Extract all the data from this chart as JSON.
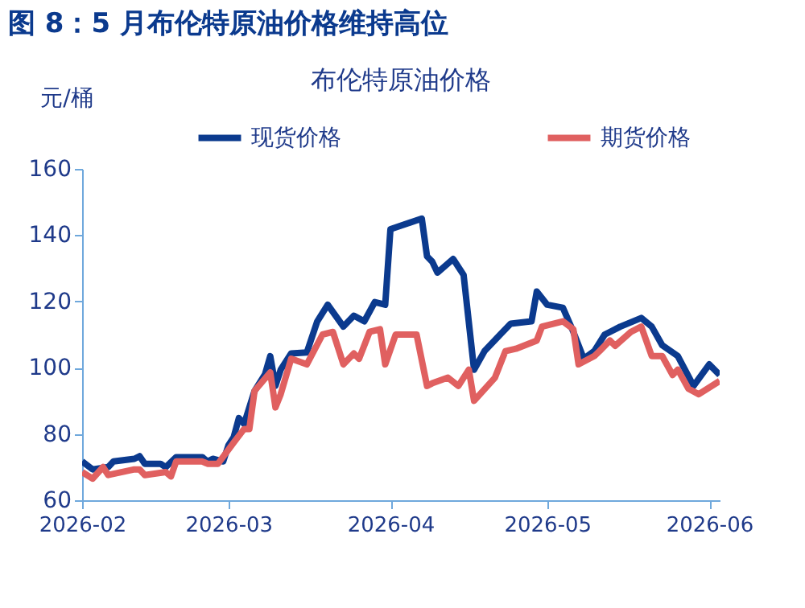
{
  "chart_data": {
    "type": "line",
    "title": "图 8：5 月布伦特原油价格维持高位",
    "subtitle": "布伦特原油价格",
    "ylabel": "元/桶",
    "xlim": [
      "2026-02-01",
      "2026-06-03"
    ],
    "xticks": [
      "2026-02",
      "2026-03",
      "2026-04",
      "2026-05",
      "2026-06"
    ],
    "ylim": [
      60,
      160
    ],
    "yticks": [
      60,
      80,
      100,
      120,
      140,
      160
    ],
    "grid": false,
    "legend": "top",
    "marker": "none",
    "line_style": "solid",
    "series": [
      {
        "name": "现货价格",
        "color": "#0b3a8e",
        "x": [
          "2026-02-01",
          "2026-02-03",
          "2026-02-06",
          "2026-02-07",
          "2026-02-11",
          "2026-02-12",
          "2026-02-13",
          "2026-02-16",
          "2026-02-17",
          "2026-02-19",
          "2026-02-24",
          "2026-02-25",
          "2026-02-26",
          "2026-02-28",
          "2026-03-01",
          "2026-03-02",
          "2026-03-03",
          "2026-03-04",
          "2026-03-06",
          "2026-03-08",
          "2026-03-09",
          "2026-03-10",
          "2026-03-11",
          "2026-03-13",
          "2026-03-16",
          "2026-03-18",
          "2026-03-20",
          "2026-03-23",
          "2026-03-25",
          "2026-03-27",
          "2026-03-29",
          "2026-03-31",
          "2026-04-01",
          "2026-04-07",
          "2026-04-08",
          "2026-04-09",
          "2026-04-10",
          "2026-04-13",
          "2026-04-15",
          "2026-04-17",
          "2026-04-19",
          "2026-04-22",
          "2026-04-24",
          "2026-04-28",
          "2026-04-29",
          "2026-05-01",
          "2026-05-04",
          "2026-05-06",
          "2026-05-08",
          "2026-05-10",
          "2026-05-12",
          "2026-05-13",
          "2026-05-15",
          "2026-05-19",
          "2026-05-21",
          "2026-05-23",
          "2026-05-26",
          "2026-05-29",
          "2026-06-01",
          "2026-06-03"
        ],
        "values": [
          71.7,
          69.3,
          70,
          71.7,
          72.5,
          73.3,
          71,
          71,
          70,
          73,
          73,
          71.7,
          72.5,
          71.7,
          76.6,
          79,
          84.8,
          83,
          93,
          98,
          103.5,
          94.5,
          99.4,
          104.3,
          104.6,
          114,
          119,
          112.4,
          115.7,
          114,
          119.8,
          119,
          141.8,
          145,
          133.6,
          132,
          128.7,
          132.8,
          128,
          99.4,
          105,
          110,
          113.3,
          114,
          123,
          119,
          118.1,
          110.8,
          102.7,
          105,
          110,
          110.8,
          112.4,
          115,
          112.4,
          106.8,
          103.5,
          94.5,
          101,
          97.8
        ]
      },
      {
        "name": "期货价格",
        "color": "#e06060",
        "x": [
          "2026-02-01",
          "2026-02-03",
          "2026-02-05",
          "2026-02-06",
          "2026-02-11",
          "2026-02-12",
          "2026-02-13",
          "2026-02-17",
          "2026-02-18",
          "2026-02-19",
          "2026-02-24",
          "2026-02-25",
          "2026-02-27",
          "2026-03-02",
          "2026-03-04",
          "2026-03-05",
          "2026-03-06",
          "2026-03-09",
          "2026-03-10",
          "2026-03-11",
          "2026-03-13",
          "2026-03-16",
          "2026-03-19",
          "2026-03-21",
          "2026-03-23",
          "2026-03-25",
          "2026-03-26",
          "2026-03-28",
          "2026-03-30",
          "2026-03-31",
          "2026-04-02",
          "2026-04-06",
          "2026-04-08",
          "2026-04-09",
          "2026-04-12",
          "2026-04-14",
          "2026-04-16",
          "2026-04-17",
          "2026-04-21",
          "2026-04-23",
          "2026-04-25",
          "2026-04-29",
          "2026-04-30",
          "2026-05-04",
          "2026-05-06",
          "2026-05-07",
          "2026-05-10",
          "2026-05-11",
          "2026-05-13",
          "2026-05-14",
          "2026-05-17",
          "2026-05-19",
          "2026-05-21",
          "2026-05-23",
          "2026-05-25",
          "2026-05-26",
          "2026-05-28",
          "2026-05-30",
          "2026-06-03"
        ],
        "values": [
          68.5,
          66.5,
          70,
          67.6,
          69.3,
          69.3,
          67.6,
          68.5,
          67.2,
          71.7,
          71.7,
          71,
          71,
          77.4,
          81.5,
          81.5,
          93,
          98.6,
          88,
          92,
          102.7,
          101,
          110,
          110.8,
          101,
          104.3,
          102.7,
          110.8,
          111.6,
          101,
          110,
          110,
          94.5,
          95.3,
          97,
          94.5,
          99.4,
          90,
          97,
          105,
          105.7,
          108.2,
          112.4,
          114,
          111.6,
          101,
          103.5,
          105,
          108.2,
          106.6,
          110.8,
          112.4,
          103.5,
          103.5,
          97.8,
          99.4,
          93.7,
          92,
          96
        ]
      }
    ]
  }
}
